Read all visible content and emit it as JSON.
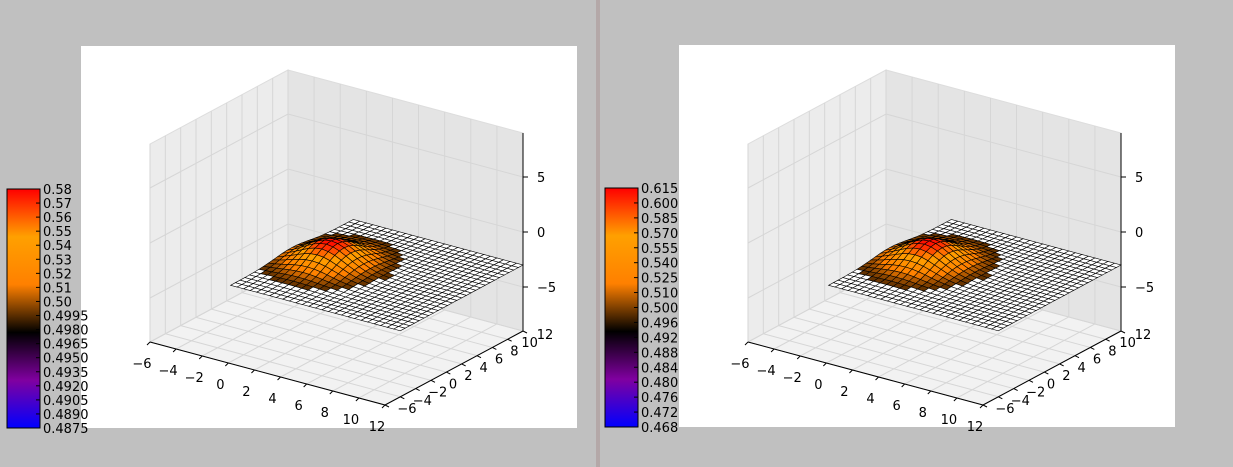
{
  "chart_data": [
    {
      "type": "surface",
      "title": "",
      "xlabel": "",
      "ylabel": "",
      "zlabel": "",
      "x_ticks": [
        "−6",
        "−4",
        "−2",
        "0",
        "2",
        "4",
        "6",
        "8",
        "10",
        "12"
      ],
      "y_ticks": [
        "−6",
        "−4",
        "−2",
        "0",
        "2",
        "4",
        "6",
        "8",
        "10",
        "12"
      ],
      "z_ticks": [
        "−5",
        "0",
        "5"
      ],
      "xlim": [
        -6,
        12
      ],
      "ylim": [
        -6,
        12
      ],
      "zlim": [
        -9,
        9
      ],
      "surface_z_level": -3,
      "peak": {
        "x": 2,
        "y": 4,
        "z": -1
      },
      "colorbar": {
        "ticks": [
          "0.58",
          "0.57",
          "0.56",
          "0.55",
          "0.54",
          "0.53",
          "0.52",
          "0.51",
          "0.50",
          "0.4995",
          "0.4980",
          "0.4965",
          "0.4950",
          "0.4935",
          "0.4920",
          "0.4905",
          "0.4890",
          "0.4875"
        ],
        "colormap": [
          "#0000ff",
          "#8000a0",
          "#000000",
          "#ff8000",
          "#ffa000",
          "#ff0000"
        ]
      }
    },
    {
      "type": "surface",
      "title": "",
      "xlabel": "",
      "ylabel": "",
      "zlabel": "",
      "x_ticks": [
        "−6",
        "−4",
        "−2",
        "0",
        "2",
        "4",
        "6",
        "8",
        "10",
        "12"
      ],
      "y_ticks": [
        "−6",
        "−4",
        "−2",
        "0",
        "2",
        "4",
        "6",
        "8",
        "10",
        "12"
      ],
      "z_ticks": [
        "−5",
        "0",
        "5"
      ],
      "xlim": [
        -6,
        12
      ],
      "ylim": [
        -6,
        12
      ],
      "zlim": [
        -9,
        9
      ],
      "surface_z_level": -3,
      "peak": {
        "x": 2,
        "y": 4,
        "z": -1
      },
      "colorbar": {
        "ticks": [
          "0.615",
          "0.600",
          "0.585",
          "0.570",
          "0.555",
          "0.540",
          "0.525",
          "0.510",
          "0.500",
          "0.496",
          "0.492",
          "0.488",
          "0.484",
          "0.480",
          "0.476",
          "0.472",
          "0.468"
        ],
        "colormap": [
          "#0000ff",
          "#8000a0",
          "#000000",
          "#ff8000",
          "#ffa000",
          "#ff0000"
        ]
      }
    }
  ]
}
